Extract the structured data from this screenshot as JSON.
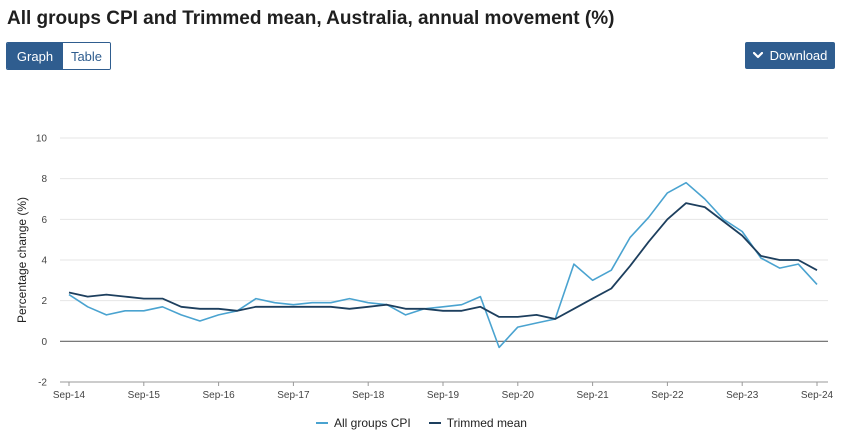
{
  "title": "All groups CPI and Trimmed mean, Australia, annual movement (%)",
  "toggle": {
    "graph_label": "Graph",
    "table_label": "Table",
    "active": "Graph"
  },
  "download": {
    "label": "Download",
    "icon": "chevron-down-icon"
  },
  "colors": {
    "accent": "#2f5d8f",
    "cpi": "#4aa3d0",
    "trimmed": "#1d3f5e",
    "zero_line": "#666666",
    "grid": "#e6e6e6"
  },
  "chart_data": {
    "type": "line",
    "title": "",
    "xlabel": "",
    "ylabel": "Percentage change (%)",
    "ylim": [
      -2,
      10
    ],
    "yticks": [
      -2,
      0,
      2,
      4,
      6,
      8,
      10
    ],
    "grid": true,
    "legend_position": "bottom-center",
    "x_tick_labels": [
      "Sep-14",
      "Sep-15",
      "Sep-16",
      "Sep-17",
      "Sep-18",
      "Sep-19",
      "Sep-20",
      "Sep-21",
      "Sep-22",
      "Sep-23",
      "Sep-24"
    ],
    "x": [
      "Sep-14",
      "Dec-14",
      "Mar-15",
      "Jun-15",
      "Sep-15",
      "Dec-15",
      "Mar-16",
      "Jun-16",
      "Sep-16",
      "Dec-16",
      "Mar-17",
      "Jun-17",
      "Sep-17",
      "Dec-17",
      "Mar-18",
      "Jun-18",
      "Sep-18",
      "Dec-18",
      "Mar-19",
      "Jun-19",
      "Sep-19",
      "Dec-19",
      "Mar-20",
      "Jun-20",
      "Sep-20",
      "Dec-20",
      "Mar-21",
      "Jun-21",
      "Sep-21",
      "Dec-21",
      "Mar-22",
      "Jun-22",
      "Sep-22",
      "Dec-22",
      "Mar-23",
      "Jun-23",
      "Sep-23",
      "Dec-23",
      "Mar-24",
      "Jun-24",
      "Sep-24"
    ],
    "series": [
      {
        "name": "All groups CPI",
        "color": "#4aa3d0",
        "values": [
          2.3,
          1.7,
          1.3,
          1.5,
          1.5,
          1.7,
          1.3,
          1.0,
          1.3,
          1.5,
          2.1,
          1.9,
          1.8,
          1.9,
          1.9,
          2.1,
          1.9,
          1.8,
          1.3,
          1.6,
          1.7,
          1.8,
          2.2,
          -0.3,
          0.7,
          0.9,
          1.1,
          3.8,
          3.0,
          3.5,
          5.1,
          6.1,
          7.3,
          7.8,
          7.0,
          6.0,
          5.4,
          4.1,
          3.6,
          3.8,
          2.8
        ]
      },
      {
        "name": "Trimmed mean",
        "color": "#1d3f5e",
        "values": [
          2.4,
          2.2,
          2.3,
          2.2,
          2.1,
          2.1,
          1.7,
          1.6,
          1.6,
          1.5,
          1.7,
          1.7,
          1.7,
          1.7,
          1.7,
          1.6,
          1.7,
          1.8,
          1.6,
          1.6,
          1.5,
          1.5,
          1.7,
          1.2,
          1.2,
          1.3,
          1.1,
          1.6,
          2.1,
          2.6,
          3.7,
          4.9,
          6.0,
          6.8,
          6.6,
          5.9,
          5.2,
          4.2,
          4.0,
          4.0,
          3.5
        ]
      }
    ]
  }
}
